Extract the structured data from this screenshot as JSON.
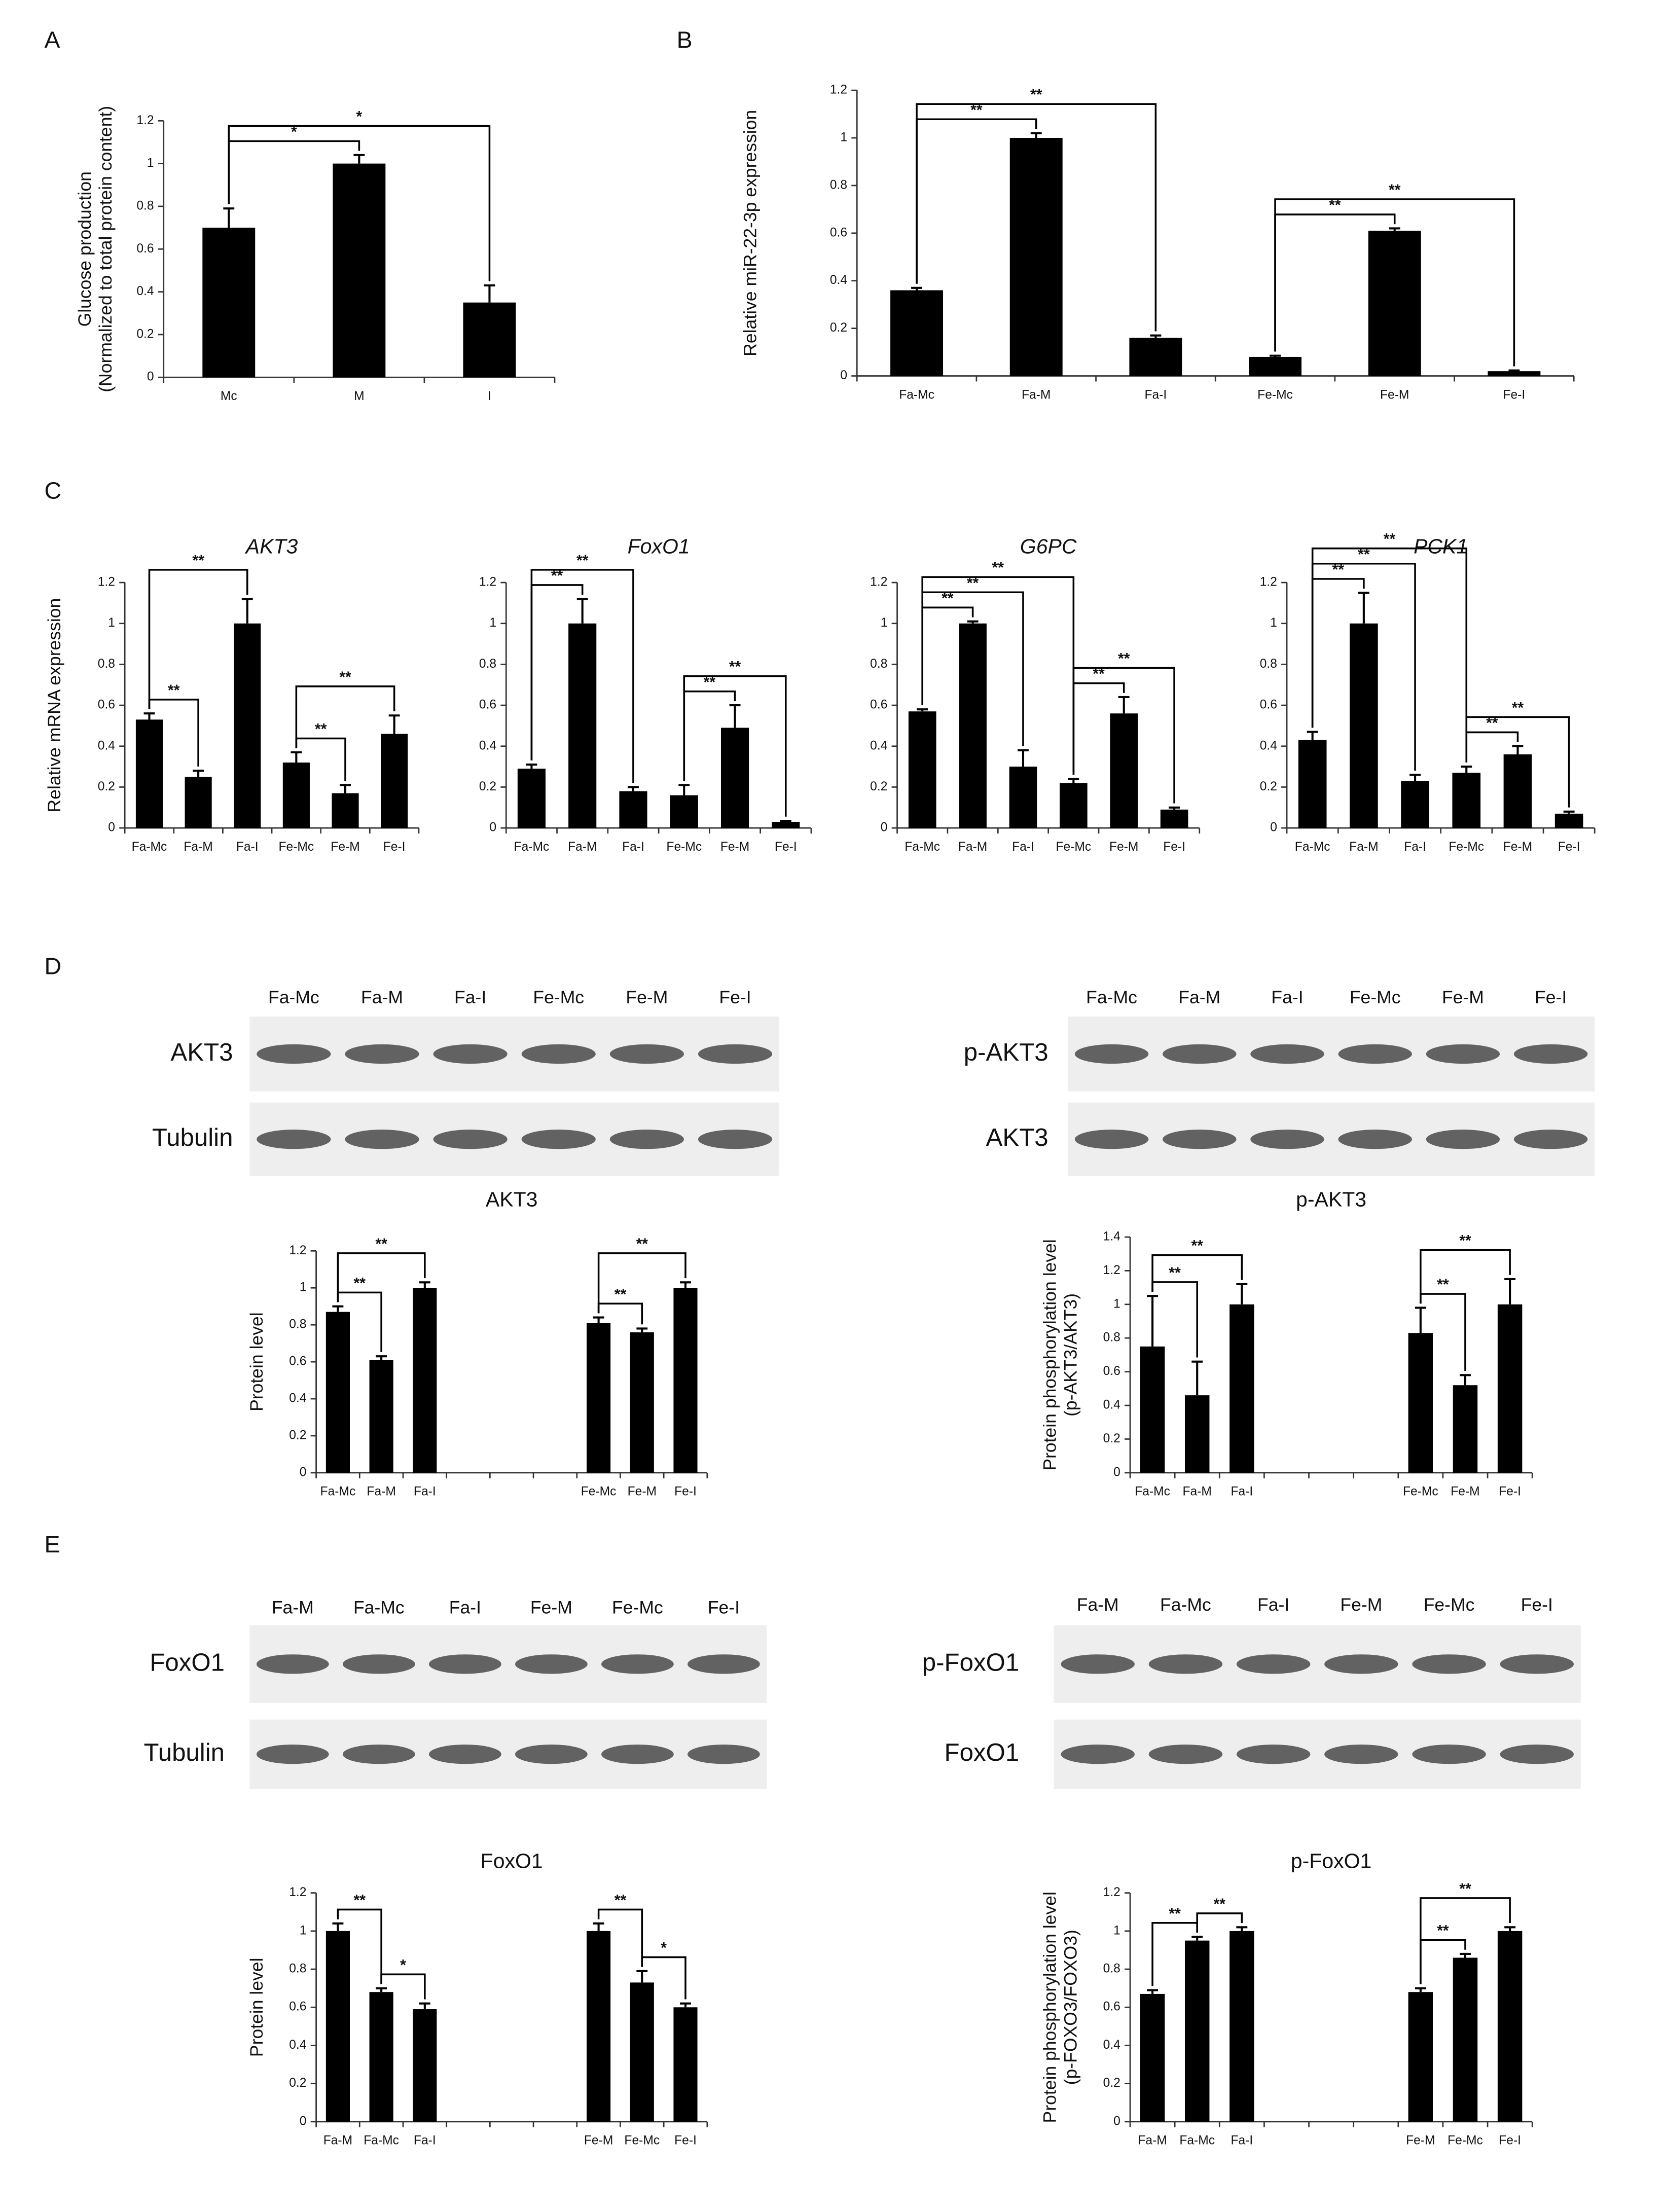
{
  "panels": [
    "A",
    "B",
    "C",
    "D",
    "E"
  ],
  "blots": [
    {
      "lanes": [
        "Fa-Mc",
        "Fa-M",
        "Fa-I",
        "Fe-Mc",
        "Fe-M",
        "Fe-I"
      ],
      "rows": [
        "AKT3",
        "Tubulin"
      ]
    },
    {
      "lanes": [
        "Fa-Mc",
        "Fa-M",
        "Fa-I",
        "Fe-Mc",
        "Fe-M",
        "Fe-I"
      ],
      "rows": [
        "p-AKT3",
        "AKT3"
      ]
    },
    {
      "lanes": [
        "Fa-M",
        "Fa-Mc",
        "Fa-I",
        "Fe-M",
        "Fe-Mc",
        "Fe-I"
      ],
      "rows": [
        "FoxO1",
        "Tubulin"
      ]
    },
    {
      "lanes": [
        "Fa-M",
        "Fa-Mc",
        "Fa-I",
        "Fe-M",
        "Fe-Mc",
        "Fe-I"
      ],
      "rows": [
        "p-FoxO1",
        "FoxO1"
      ]
    }
  ],
  "chart_data": [
    {
      "type": "bar",
      "ylabel": [
        "Glucose production",
        "(Normalized to total protein content)"
      ],
      "color": "#000000",
      "categories": [
        "Mc",
        "M",
        "I"
      ],
      "values": [
        0.7,
        1.0,
        0.35
      ],
      "errors": [
        0.09,
        0.04,
        0.08
      ],
      "ylim": [
        0,
        1.2
      ],
      "yticks": [
        0,
        0.2,
        0.4,
        0.6,
        0.8,
        1,
        1.2
      ],
      "annotations": [
        {
          "text": "*",
          "from": 0,
          "to": 1
        },
        {
          "text": "*",
          "from": 0,
          "to": 2
        }
      ]
    },
    {
      "type": "bar",
      "ylabel": [
        "Relative miR-22-3p expression"
      ],
      "color": "#000000",
      "categories": [
        "Fa-Mc",
        "Fa-M",
        "Fa-I",
        "Fe-Mc",
        "Fe-M",
        "Fe-I"
      ],
      "values": [
        0.36,
        1.0,
        0.16,
        0.08,
        0.61,
        0.02
      ],
      "errors": [
        0.01,
        0.02,
        0.01,
        0.005,
        0.01,
        0.003
      ],
      "ylim": [
        0,
        1.2
      ],
      "yticks": [
        0,
        0.2,
        0.4,
        0.6,
        0.8,
        1,
        1.2
      ],
      "annotations": [
        {
          "text": "**",
          "from": 0,
          "to": 1
        },
        {
          "text": "**",
          "from": 0,
          "to": 2
        },
        {
          "text": "**",
          "from": 3,
          "to": 4
        },
        {
          "text": "**",
          "from": 3,
          "to": 5
        }
      ]
    },
    {
      "type": "bar",
      "title": "AKT3",
      "ylabel": [
        "Relative mRNA expression"
      ],
      "color": "#000000",
      "categories": [
        "Fa-Mc",
        "Fa-M",
        "Fa-I",
        "Fe-Mc",
        "Fe-M",
        "Fe-I"
      ],
      "values": [
        0.53,
        0.25,
        1.0,
        0.32,
        0.17,
        0.46
      ],
      "errors": [
        0.03,
        0.03,
        0.12,
        0.05,
        0.04,
        0.09
      ],
      "ylim": [
        0,
        1.2
      ],
      "yticks": [
        0,
        0.2,
        0.4,
        0.6,
        0.8,
        1,
        1.2
      ],
      "annotations": [
        {
          "text": "**",
          "from": 0,
          "to": 1
        },
        {
          "text": "**",
          "from": 0,
          "to": 2
        },
        {
          "text": "**",
          "from": 3,
          "to": 4
        },
        {
          "text": "**",
          "from": 3,
          "to": 5
        }
      ]
    },
    {
      "type": "bar",
      "title": "FoxO1",
      "color": "#000000",
      "categories": [
        "Fa-Mc",
        "Fa-M",
        "Fa-I",
        "Fe-Mc",
        "Fe-M",
        "Fe-I"
      ],
      "values": [
        0.29,
        1.0,
        0.18,
        0.16,
        0.49,
        0.03
      ],
      "errors": [
        0.02,
        0.12,
        0.02,
        0.05,
        0.11,
        0.005
      ],
      "ylim": [
        0,
        1.2
      ],
      "yticks": [
        0,
        0.2,
        0.4,
        0.6,
        0.8,
        1,
        1.2
      ],
      "annotations": [
        {
          "text": "**",
          "from": 0,
          "to": 1
        },
        {
          "text": "**",
          "from": 0,
          "to": 2
        },
        {
          "text": "**",
          "from": 3,
          "to": 4
        },
        {
          "text": "**",
          "from": 3,
          "to": 5
        }
      ]
    },
    {
      "type": "bar",
      "title": "G6PC",
      "color": "#000000",
      "categories": [
        "Fa-Mc",
        "Fa-M",
        "Fa-I",
        "Fe-Mc",
        "Fe-M",
        "Fe-I"
      ],
      "values": [
        0.57,
        1.0,
        0.3,
        0.22,
        0.56,
        0.09
      ],
      "errors": [
        0.01,
        0.01,
        0.08,
        0.02,
        0.08,
        0.01
      ],
      "ylim": [
        0,
        1.2
      ],
      "yticks": [
        0,
        0.2,
        0.4,
        0.6,
        0.8,
        1,
        1.2
      ],
      "annotations": [
        {
          "text": "**",
          "from": 0,
          "to": 1
        },
        {
          "text": "**",
          "from": 0,
          "to": 2
        },
        {
          "text": "**",
          "from": 0,
          "to": 3
        },
        {
          "text": "**",
          "from": 3,
          "to": 4
        },
        {
          "text": "**",
          "from": 3,
          "to": 5
        }
      ]
    },
    {
      "type": "bar",
      "title": "PCK1",
      "color": "#000000",
      "categories": [
        "Fa-Mc",
        "Fa-M",
        "Fa-I",
        "Fe-Mc",
        "Fe-M",
        "Fe-I"
      ],
      "values": [
        0.43,
        1.0,
        0.23,
        0.27,
        0.36,
        0.07
      ],
      "errors": [
        0.04,
        0.15,
        0.03,
        0.03,
        0.04,
        0.01
      ],
      "ylim": [
        0,
        1.2
      ],
      "yticks": [
        0,
        0.2,
        0.4,
        0.6,
        0.8,
        1,
        1.2
      ],
      "annotations": [
        {
          "text": "**",
          "from": 0,
          "to": 1
        },
        {
          "text": "**",
          "from": 0,
          "to": 2
        },
        {
          "text": "**",
          "from": 0,
          "to": 3
        },
        {
          "text": "**",
          "from": 3,
          "to": 4
        },
        {
          "text": "**",
          "from": 3,
          "to": 5
        }
      ]
    },
    {
      "type": "bar",
      "title": "AKT3",
      "ylabel": [
        "Protein level"
      ],
      "color": "#000000",
      "categories": [
        "Fa-Mc",
        "Fa-M",
        "Fa-I",
        null,
        null,
        null,
        "Fe-Mc",
        "Fe-M",
        "Fe-I"
      ],
      "values": [
        0.87,
        0.61,
        1.0,
        null,
        null,
        null,
        0.81,
        0.76,
        1.0
      ],
      "errors": [
        0.03,
        0.02,
        0.03,
        null,
        null,
        null,
        0.03,
        0.02,
        0.03
      ],
      "ylim": [
        0,
        1.2
      ],
      "yticks": [
        0,
        0.2,
        0.4,
        0.6,
        0.8,
        1,
        1.2
      ],
      "annotations": [
        {
          "text": "**",
          "from": 0,
          "to": 1
        },
        {
          "text": "**",
          "from": 0,
          "to": 2
        },
        {
          "text": "**",
          "from": 6,
          "to": 7
        },
        {
          "text": "**",
          "from": 6,
          "to": 8
        }
      ]
    },
    {
      "type": "bar",
      "title": "p-AKT3",
      "ylabel": [
        "Protein phosphorylation level",
        "(p-AKT3/AKT3)"
      ],
      "color": "#000000",
      "categories": [
        "Fa-Mc",
        "Fa-M",
        "Fa-I",
        null,
        null,
        null,
        "Fe-Mc",
        "Fe-M",
        "Fe-I"
      ],
      "values": [
        0.75,
        0.46,
        1.0,
        null,
        null,
        null,
        0.83,
        0.52,
        1.0
      ],
      "errors": [
        0.3,
        0.2,
        0.12,
        null,
        null,
        null,
        0.15,
        0.06,
        0.15
      ],
      "ylim": [
        0,
        1.4
      ],
      "yticks": [
        0,
        0.2,
        0.4,
        0.6,
        0.8,
        1,
        1.2,
        1.4
      ],
      "annotations": [
        {
          "text": "**",
          "from": 0,
          "to": 1
        },
        {
          "text": "**",
          "from": 0,
          "to": 2
        },
        {
          "text": "**",
          "from": 6,
          "to": 7
        },
        {
          "text": "**",
          "from": 6,
          "to": 8
        }
      ]
    },
    {
      "type": "bar",
      "title": "FoxO1",
      "ylabel": [
        "Protein level"
      ],
      "color": "#000000",
      "categories": [
        "Fa-M",
        "Fa-Mc",
        "Fa-I",
        null,
        null,
        null,
        "Fe-M",
        "Fe-Mc",
        "Fe-I"
      ],
      "values": [
        1.0,
        0.68,
        0.59,
        null,
        null,
        null,
        1.0,
        0.73,
        0.6
      ],
      "errors": [
        0.04,
        0.02,
        0.03,
        null,
        null,
        null,
        0.04,
        0.06,
        0.02
      ],
      "ylim": [
        0,
        1.2
      ],
      "yticks": [
        0,
        0.2,
        0.4,
        0.6,
        0.8,
        1,
        1.2
      ],
      "annotations": [
        {
          "text": "**",
          "from": 0,
          "to": 1
        },
        {
          "text": "*",
          "from": 1,
          "to": 2
        },
        {
          "text": "**",
          "from": 6,
          "to": 7
        },
        {
          "text": "*",
          "from": 7,
          "to": 8
        }
      ]
    },
    {
      "type": "bar",
      "title": "p-FoxO1",
      "ylabel": [
        "Protein phosphorylation level",
        "(p-FOXO3/FOXO3)"
      ],
      "color": "#000000",
      "categories": [
        "Fa-M",
        "Fa-Mc",
        "Fa-I",
        null,
        null,
        null,
        "Fe-M",
        "Fe-Mc",
        "Fe-I"
      ],
      "values": [
        0.67,
        0.95,
        1.0,
        null,
        null,
        null,
        0.68,
        0.86,
        1.0
      ],
      "errors": [
        0.02,
        0.02,
        0.02,
        null,
        null,
        null,
        0.02,
        0.02,
        0.02
      ],
      "ylim": [
        0,
        1.2
      ],
      "yticks": [
        0,
        0.2,
        0.4,
        0.6,
        0.8,
        1,
        1.2
      ],
      "annotations": [
        {
          "text": "**",
          "from": 0,
          "to": 1
        },
        {
          "text": "**",
          "from": 1,
          "to": 2
        },
        {
          "text": "**",
          "from": 6,
          "to": 7
        },
        {
          "text": "**",
          "from": 6,
          "to": 8
        }
      ]
    }
  ]
}
